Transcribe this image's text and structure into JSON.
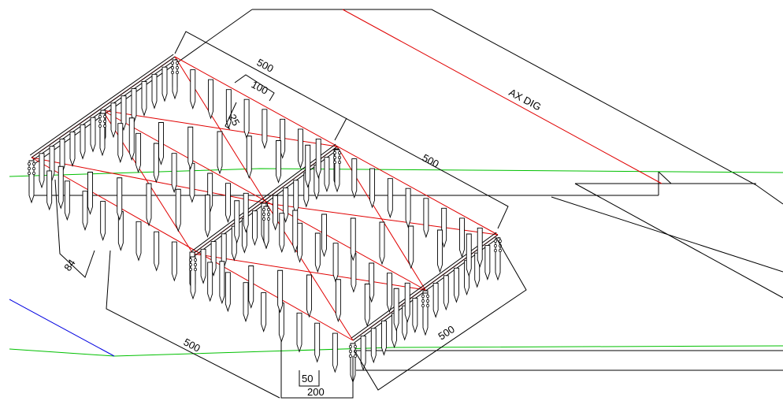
{
  "colors": {
    "structure": "#000000",
    "axis": "#e00000",
    "terrain": "#00c000",
    "water": "#0000e0",
    "background": "#ffffff"
  },
  "labels": {
    "axis_label": "AX DIG",
    "dim_top_length": "500",
    "dim_mid_length": "500",
    "dim_bottom_length": "500",
    "dim_right_length": "500",
    "dim_spacing": "100",
    "dim_offset": "25",
    "dim_depth": "84",
    "dim_pile_spacing": "50",
    "dim_width": "200"
  }
}
